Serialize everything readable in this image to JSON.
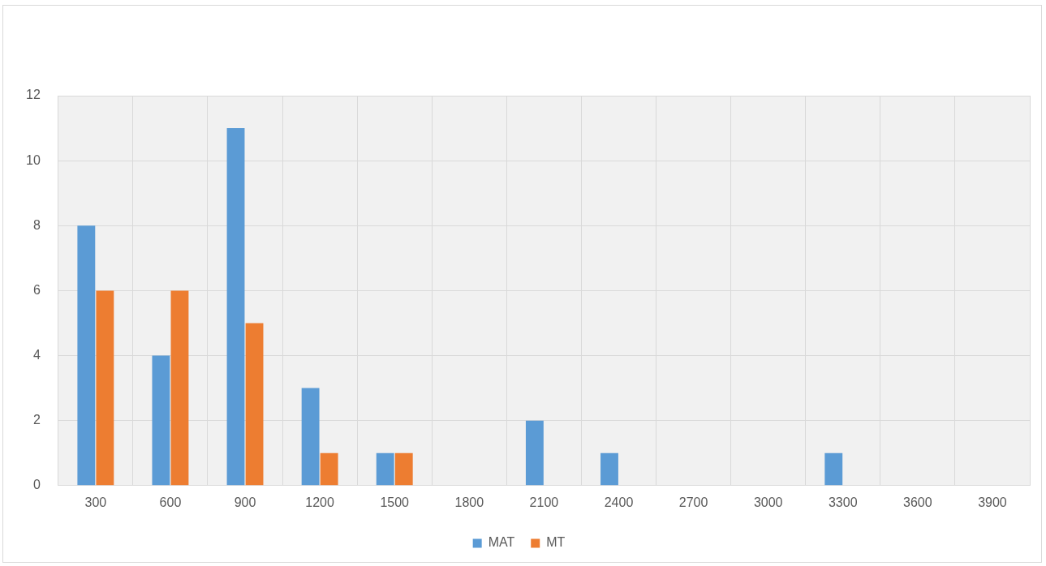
{
  "chart_data": {
    "type": "bar",
    "categories": [
      "300",
      "600",
      "900",
      "1200",
      "1500",
      "1800",
      "2100",
      "2400",
      "2700",
      "3000",
      "3300",
      "3600",
      "3900"
    ],
    "series": [
      {
        "name": "MAT",
        "color": "#5b9bd5",
        "values": [
          8,
          4,
          11,
          3,
          1,
          0,
          2,
          1,
          0,
          0,
          1,
          0,
          0
        ]
      },
      {
        "name": "MT",
        "color": "#ed7d31",
        "values": [
          6,
          6,
          5,
          1,
          1,
          0,
          0,
          0,
          0,
          0,
          0,
          0,
          0
        ]
      }
    ],
    "ylim": [
      0,
      12
    ],
    "yticks": [
      0,
      2,
      4,
      6,
      8,
      10,
      12
    ],
    "grid": true,
    "legend": "bottom"
  }
}
